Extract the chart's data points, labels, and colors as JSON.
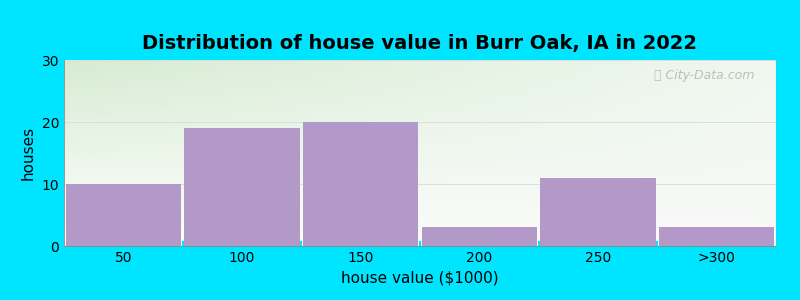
{
  "title": "Distribution of house value in Burr Oak, IA in 2022",
  "xlabel": "house value ($1000)",
  "ylabel": "houses",
  "categories": [
    "50",
    "100",
    "150",
    "200",
    "250",
    ">300"
  ],
  "values": [
    10,
    19,
    20,
    3,
    11,
    3
  ],
  "bar_color": "#b399c8",
  "bar_edgecolor": "none",
  "ylim": [
    0,
    30
  ],
  "yticks": [
    0,
    10,
    20,
    30
  ],
  "background_outer": "#00e5ff",
  "bg_top_left": "#d6ecd2",
  "bg_top_right": "#e8f0e0",
  "bg_bottom_left": "#ffffff",
  "bg_bottom_right": "#f5f5f5",
  "title_fontsize": 14,
  "axis_label_fontsize": 11,
  "tick_fontsize": 10,
  "bar_width": 0.97,
  "watermark_text": "City-Data.com",
  "grid_color": "#dddddd",
  "separator_color": "#00e5ff"
}
